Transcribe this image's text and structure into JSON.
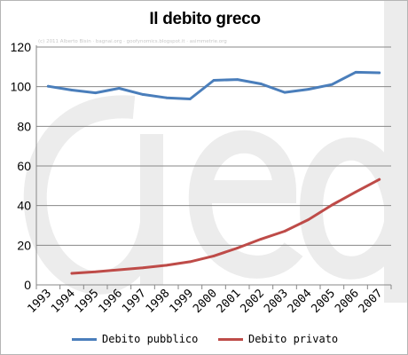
{
  "title": "Il debito greco",
  "watermark": {
    "credit": "(c) 2011 Alberto Bisin · bagnai.org · goofynomics.blogspot.it · asimmetrie.org",
    "logo": "a/e/d"
  },
  "colors": {
    "pubblico": "#4a7ebb",
    "privato": "#be4b48",
    "grid": "#878787",
    "axis": "#878787",
    "watermark": "#ececec"
  },
  "chart_data": {
    "type": "line",
    "title": "Il debito greco",
    "xlabel": "",
    "ylabel": "",
    "categories": [
      "1993",
      "1994",
      "1995",
      "1996",
      "1997",
      "1998",
      "1999",
      "2000",
      "2001",
      "2002",
      "2003",
      "2004",
      "2005",
      "2006",
      "2007"
    ],
    "ylim": [
      0,
      120
    ],
    "yticks": [
      "0",
      "20",
      "40",
      "60",
      "80",
      "100",
      "120"
    ],
    "grid": true,
    "legend_position": "bottom",
    "series": [
      {
        "name": "Debito pubblico",
        "values": [
          100.2,
          98.3,
          96.9,
          99.2,
          96.1,
          94.4,
          93.8,
          103.2,
          103.6,
          101.4,
          97.1,
          98.7,
          101.1,
          107.3,
          107.0
        ]
      },
      {
        "name": "Debito privato",
        "values": [
          null,
          5.8,
          6.6,
          7.6,
          8.6,
          9.9,
          11.7,
          14.6,
          18.6,
          23.1,
          27.1,
          32.9,
          40.3,
          46.9,
          53.2
        ]
      }
    ]
  }
}
